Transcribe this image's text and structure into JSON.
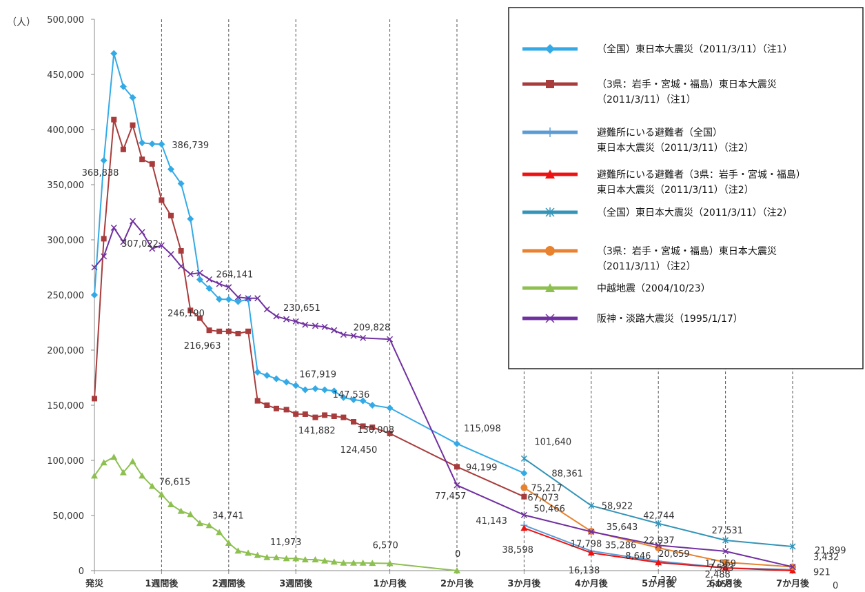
{
  "chart_data": {
    "type": "line",
    "ylabel": "（人）",
    "ylim": [
      0,
      500000
    ],
    "yticks": [
      {
        "value": 0,
        "label": "0"
      },
      {
        "value": 50000,
        "label": "50,000"
      },
      {
        "value": 100000,
        "label": "100,000"
      },
      {
        "value": 150000,
        "label": "150,000"
      },
      {
        "value": 200000,
        "label": "200,000"
      },
      {
        "value": 250000,
        "label": "250,000"
      },
      {
        "value": 300000,
        "label": "300,000"
      },
      {
        "value": 350000,
        "label": "350,000"
      },
      {
        "value": 400000,
        "label": "400,000"
      },
      {
        "value": 450000,
        "label": "450,000"
      },
      {
        "value": 500000,
        "label": "500,000"
      }
    ],
    "xticks": [
      {
        "x": 0,
        "label": "発災"
      },
      {
        "x": 1,
        "label": "1週間後"
      },
      {
        "x": 2,
        "label": "2週間後"
      },
      {
        "x": 3,
        "label": "3週間後"
      },
      {
        "x": 4.4,
        "label": "1か月後"
      },
      {
        "x": 5.4,
        "label": "2か月後"
      },
      {
        "x": 6.4,
        "label": "3か月後"
      },
      {
        "x": 7.4,
        "label": "4か月後"
      },
      {
        "x": 8.4,
        "label": "5か月後"
      },
      {
        "x": 9.4,
        "label": "6か月後"
      },
      {
        "x": 10.4,
        "label": "7か月後"
      }
    ],
    "grid": "vertical dashed",
    "legend": "top-right",
    "series": [
      {
        "name": "（全国）東日本大震災（2011/3/11）（注1）",
        "color": "#33aae6",
        "marker": "diamond",
        "points": [
          [
            0,
            250000
          ],
          [
            0.14,
            372000
          ],
          [
            0.29,
            469000
          ],
          [
            0.43,
            439000
          ],
          [
            0.57,
            429000
          ],
          [
            0.71,
            388000
          ],
          [
            0.86,
            387000
          ],
          [
            1.0,
            386739
          ],
          [
            1.14,
            364000
          ],
          [
            1.29,
            351000
          ],
          [
            1.43,
            319000
          ],
          [
            1.57,
            264000
          ],
          [
            1.71,
            256000
          ],
          [
            1.86,
            246190
          ],
          [
            2.0,
            246000
          ],
          [
            2.14,
            244000
          ],
          [
            2.29,
            246000
          ],
          [
            2.43,
            180000
          ],
          [
            2.57,
            177000
          ],
          [
            2.71,
            174000
          ],
          [
            2.86,
            171000
          ],
          [
            3.0,
            167919
          ],
          [
            3.14,
            164000
          ],
          [
            3.29,
            165000
          ],
          [
            3.43,
            164000
          ],
          [
            3.57,
            163000
          ],
          [
            3.71,
            157000
          ],
          [
            3.86,
            155000
          ],
          [
            4.0,
            154000
          ],
          [
            4.14,
            150000
          ],
          [
            4.4,
            147536
          ],
          [
            5.4,
            115098
          ],
          [
            6.4,
            88361
          ]
        ]
      },
      {
        "name": "（3県：岩手・宮城・福島）東日本大震災（2011/3/11）（注1）",
        "color": "#a83c3c",
        "marker": "square",
        "points": [
          [
            0,
            156000
          ],
          [
            0.14,
            301000
          ],
          [
            0.29,
            409000
          ],
          [
            0.43,
            382000
          ],
          [
            0.57,
            404000
          ],
          [
            0.71,
            373000
          ],
          [
            0.86,
            368838
          ],
          [
            1.0,
            336000
          ],
          [
            1.14,
            322000
          ],
          [
            1.29,
            290000
          ],
          [
            1.43,
            236000
          ],
          [
            1.57,
            229000
          ],
          [
            1.71,
            218000
          ],
          [
            1.86,
            217000
          ],
          [
            2.0,
            216963
          ],
          [
            2.14,
            215000
          ],
          [
            2.29,
            217000
          ],
          [
            2.43,
            154000
          ],
          [
            2.57,
            150000
          ],
          [
            2.71,
            147000
          ],
          [
            2.86,
            146000
          ],
          [
            3.0,
            142000
          ],
          [
            3.14,
            141882
          ],
          [
            3.29,
            139000
          ],
          [
            3.43,
            141000
          ],
          [
            3.57,
            140000
          ],
          [
            3.71,
            139000
          ],
          [
            3.86,
            135000
          ],
          [
            4.0,
            131000
          ],
          [
            4.14,
            130008
          ],
          [
            4.4,
            124450
          ],
          [
            5.4,
            94199
          ],
          [
            6.4,
            67073
          ]
        ]
      },
      {
        "name": "避難所にいる避難者（全国）東日本大震災（2011/3/11）（注2）",
        "color": "#5b9bd5",
        "marker": "plus",
        "points": [
          [
            6.4,
            41143
          ],
          [
            7.4,
            17798
          ],
          [
            8.4,
            8646
          ],
          [
            9.4,
            2488
          ],
          [
            10.4,
            921
          ]
        ]
      },
      {
        "name": "避難所にいる避難者（3県：岩手・宮城・福島）東日本大震災（2011/3/11）（注2）",
        "color": "#ee1111",
        "marker": "triangle",
        "points": [
          [
            6.4,
            38598
          ],
          [
            7.4,
            16138
          ],
          [
            8.4,
            7379
          ],
          [
            9.4,
            2468
          ],
          [
            10.4,
            0
          ]
        ]
      },
      {
        "name": "（全国）東日本大震災（2011/3/11）（注2）",
        "color": "#3494b8",
        "marker": "star",
        "points": [
          [
            6.4,
            101640
          ],
          [
            7.4,
            58922
          ],
          [
            8.4,
            42744
          ],
          [
            9.4,
            27531
          ],
          [
            10.4,
            21899
          ]
        ]
      },
      {
        "name": "（3県：岩手・宮城・福島）東日本大震災（2011/3/11）（注2）",
        "color": "#e8822e",
        "marker": "circle",
        "points": [
          [
            6.4,
            75217
          ],
          [
            7.4,
            35643
          ],
          [
            8.4,
            20659
          ],
          [
            9.4,
            7583
          ],
          [
            10.4,
            3432
          ]
        ]
      },
      {
        "name": "中越地震（2004/10/23）",
        "color": "#8dc050",
        "marker": "triangle",
        "points": [
          [
            0,
            86000
          ],
          [
            0.14,
            98000
          ],
          [
            0.29,
            103000
          ],
          [
            0.43,
            89000
          ],
          [
            0.57,
            99000
          ],
          [
            0.71,
            86000
          ],
          [
            0.86,
            76615
          ],
          [
            1.0,
            69000
          ],
          [
            1.14,
            60000
          ],
          [
            1.29,
            54000
          ],
          [
            1.43,
            51000
          ],
          [
            1.57,
            43000
          ],
          [
            1.71,
            41000
          ],
          [
            1.86,
            34741
          ],
          [
            2.0,
            25000
          ],
          [
            2.14,
            18000
          ],
          [
            2.29,
            16000
          ],
          [
            2.43,
            14000
          ],
          [
            2.57,
            12000
          ],
          [
            2.71,
            11973
          ],
          [
            2.86,
            11000
          ],
          [
            3.0,
            11000
          ],
          [
            3.14,
            10000
          ],
          [
            3.29,
            10000
          ],
          [
            3.43,
            9000
          ],
          [
            3.57,
            8000
          ],
          [
            3.71,
            7000
          ],
          [
            3.86,
            7000
          ],
          [
            4.0,
            7000
          ],
          [
            4.14,
            6800
          ],
          [
            4.4,
            6570
          ],
          [
            5.4,
            0
          ]
        ]
      },
      {
        "name": "阪神・淡路大震災（1995/1/17）",
        "color": "#7030a0",
        "marker": "x",
        "points": [
          [
            0,
            275000
          ],
          [
            0.14,
            285000
          ],
          [
            0.29,
            311000
          ],
          [
            0.43,
            298000
          ],
          [
            0.57,
            317000
          ],
          [
            0.71,
            307022
          ],
          [
            0.86,
            292000
          ],
          [
            1.0,
            295000
          ],
          [
            1.14,
            287000
          ],
          [
            1.29,
            276000
          ],
          [
            1.43,
            269000
          ],
          [
            1.57,
            270000
          ],
          [
            1.71,
            264141
          ],
          [
            1.86,
            260000
          ],
          [
            2.0,
            257000
          ],
          [
            2.14,
            248000
          ],
          [
            2.29,
            247000
          ],
          [
            2.43,
            247000
          ],
          [
            2.57,
            237000
          ],
          [
            2.71,
            230651
          ],
          [
            2.86,
            228000
          ],
          [
            3.0,
            226000
          ],
          [
            3.14,
            223000
          ],
          [
            3.29,
            222000
          ],
          [
            3.43,
            221000
          ],
          [
            3.57,
            218000
          ],
          [
            3.71,
            214000
          ],
          [
            3.86,
            213000
          ],
          [
            4.0,
            211000
          ],
          [
            4.4,
            209828
          ],
          [
            5.4,
            77457
          ],
          [
            6.4,
            50466
          ],
          [
            7.4,
            35286
          ],
          [
            8.4,
            22937
          ],
          [
            9.4,
            17569
          ],
          [
            10.4,
            3432
          ]
        ]
      }
    ],
    "data_labels": [
      {
        "text": "386,739",
        "x": 1.0,
        "y": 386739,
        "dx": 15,
        "dy": 6
      },
      {
        "text": "368,838",
        "x": 0.14,
        "y": 360000,
        "dx": -32,
        "dy": 3
      },
      {
        "text": "307,022",
        "x": 0.71,
        "y": 307022,
        "dx": -30,
        "dy": 21
      },
      {
        "text": "264,141",
        "x": 1.71,
        "y": 264141,
        "dx": 10,
        "dy": -3
      },
      {
        "text": "246,190",
        "x": 1.86,
        "y": 246190,
        "dx": -75,
        "dy": 25
      },
      {
        "text": "230,651",
        "x": 2.71,
        "y": 230651,
        "dx": 10,
        "dy": -8
      },
      {
        "text": "209,828",
        "x": 4.4,
        "y": 209828,
        "dx": -53,
        "dy": -13
      },
      {
        "text": "216,963",
        "x": 2.0,
        "y": 216963,
        "dx": -65,
        "dy": 25
      },
      {
        "text": "167,919",
        "x": 3.0,
        "y": 167919,
        "dx": 5,
        "dy": -12
      },
      {
        "text": "147,536",
        "x": 4.4,
        "y": 147536,
        "dx": -83,
        "dy": -15
      },
      {
        "text": "141,882",
        "x": 3.14,
        "y": 141882,
        "dx": -10,
        "dy": 28
      },
      {
        "text": "130,008",
        "x": 4.14,
        "y": 130008,
        "dx": -22,
        "dy": 8
      },
      {
        "text": "124,450",
        "x": 4.4,
        "y": 124450,
        "dx": -72,
        "dy": 28
      },
      {
        "text": "115,098",
        "x": 5.4,
        "y": 115098,
        "dx": 10,
        "dy": -18
      },
      {
        "text": "101,640",
        "x": 6.4,
        "y": 101640,
        "dx": 15,
        "dy": -20
      },
      {
        "text": "94,199",
        "x": 5.4,
        "y": 94199,
        "dx": 13,
        "dy": 5
      },
      {
        "text": "88,361",
        "x": 6.4,
        "y": 88361,
        "dx": 40,
        "dy": 5
      },
      {
        "text": "77,457",
        "x": 5.4,
        "y": 77457,
        "dx": -32,
        "dy": 20
      },
      {
        "text": "75,217",
        "x": 6.4,
        "y": 75217,
        "dx": 10,
        "dy": 5
      },
      {
        "text": "67,073",
        "x": 6.4,
        "y": 67073,
        "dx": 5,
        "dy": 6
      },
      {
        "text": "50,466",
        "x": 6.4,
        "y": 50466,
        "dx": 14,
        "dy": -5
      },
      {
        "text": "41,143",
        "x": 6.4,
        "y": 41143,
        "dx": -70,
        "dy": -2
      },
      {
        "text": "38,598",
        "x": 6.4,
        "y": 38598,
        "dx": -32,
        "dy": 36
      },
      {
        "text": "76,615",
        "x": 0.86,
        "y": 76615,
        "dx": 10,
        "dy": -2
      },
      {
        "text": "34,741",
        "x": 1.86,
        "y": 34741,
        "dx": -10,
        "dy": -20
      },
      {
        "text": "11,973",
        "x": 2.71,
        "y": 11973,
        "dx": -9,
        "dy": -18
      },
      {
        "text": "6,570",
        "x": 4.4,
        "y": 6570,
        "dx": -25,
        "dy": -22
      },
      {
        "text": "0",
        "x": 5.4,
        "y": 0,
        "dx": -3,
        "dy": -20
      },
      {
        "text": "58,922",
        "x": 7.4,
        "y": 58922,
        "dx": 15,
        "dy": 5
      },
      {
        "text": "17,798",
        "x": 7.4,
        "y": 17798,
        "dx": -30,
        "dy": -6
      },
      {
        "text": "35,643",
        "x": 7.4,
        "y": 35643,
        "dx": 22,
        "dy": -2
      },
      {
        "text": "35,286",
        "x": 7.4,
        "y": 35286,
        "dx": 20,
        "dy": 24
      },
      {
        "text": "16,138",
        "x": 7.4,
        "y": 16138,
        "dx": -33,
        "dy": 30
      },
      {
        "text": "42,744",
        "x": 8.4,
        "y": 42744,
        "dx": -22,
        "dy": -7
      },
      {
        "text": "22,937",
        "x": 8.4,
        "y": 22937,
        "dx": -22,
        "dy": -3
      },
      {
        "text": "8,646",
        "x": 8.4,
        "y": 8646,
        "dx": -48,
        "dy": -3
      },
      {
        "text": "20,659",
        "x": 8.4,
        "y": 20659,
        "dx": 0,
        "dy": 13
      },
      {
        "text": "7,379",
        "x": 8.4,
        "y": 7379,
        "dx": -10,
        "dy": 30
      },
      {
        "text": "27,531",
        "x": 9.4,
        "y": 27531,
        "dx": -20,
        "dy": -10
      },
      {
        "text": "17,569",
        "x": 9.4,
        "y": 17569,
        "dx": -30,
        "dy": 22
      },
      {
        "text": "7,583",
        "x": 9.4,
        "y": 7583,
        "dx": -25,
        "dy": 12
      },
      {
        "text": "2,488",
        "x": 9.4,
        "y": 2488,
        "dx": -30,
        "dy": 14
      },
      {
        "text": "2,468",
        "x": 9.4,
        "y": 2468,
        "dx": -28,
        "dy": 28
      },
      {
        "text": "21,899",
        "x": 10.4,
        "y": 21899,
        "dx": 32,
        "dy": 10
      },
      {
        "text": "3,432",
        "x": 10.4,
        "y": 3432,
        "dx": 30,
        "dy": -10
      },
      {
        "text": "921",
        "x": 10.4,
        "y": 921,
        "dx": 30,
        "dy": 8
      },
      {
        "text": "0",
        "x": 10.4,
        "y": 0,
        "dx": 58,
        "dy": 26
      }
    ]
  },
  "legend": {
    "items": [
      {
        "lines": [
          "（全国）東日本大震災（2011/3/11）（注1）"
        ],
        "color": "#33aae6",
        "marker": "diamond"
      },
      {
        "lines": [
          "（3県：岩手・宮城・福島）東日本大震災",
          "（2011/3/11）（注1）"
        ],
        "color": "#a83c3c",
        "marker": "square"
      },
      {
        "lines": [
          "避難所にいる避難者（全国）",
          "東日本大震災（2011/3/11）（注2）"
        ],
        "color": "#5b9bd5",
        "marker": "plus"
      },
      {
        "lines": [
          "避難所にいる避難者（3県：岩手・宮城・福島）",
          "東日本大震災（2011/3/11）（注2）"
        ],
        "color": "#ee1111",
        "marker": "triangle"
      },
      {
        "lines": [
          "（全国）東日本大震災（2011/3/11）（注2）"
        ],
        "color": "#3494b8",
        "marker": "star"
      },
      {
        "lines": [
          "（3県：岩手・宮城・福島）東日本大震災",
          "（2011/3/11）（注2）"
        ],
        "color": "#e8822e",
        "marker": "circle"
      },
      {
        "lines": [
          "中越地震（2004/10/23）"
        ],
        "color": "#8dc050",
        "marker": "triangle"
      },
      {
        "lines": [
          "阪神・淡路大震災（1995/1/17）"
        ],
        "color": "#7030a0",
        "marker": "x"
      }
    ]
  }
}
